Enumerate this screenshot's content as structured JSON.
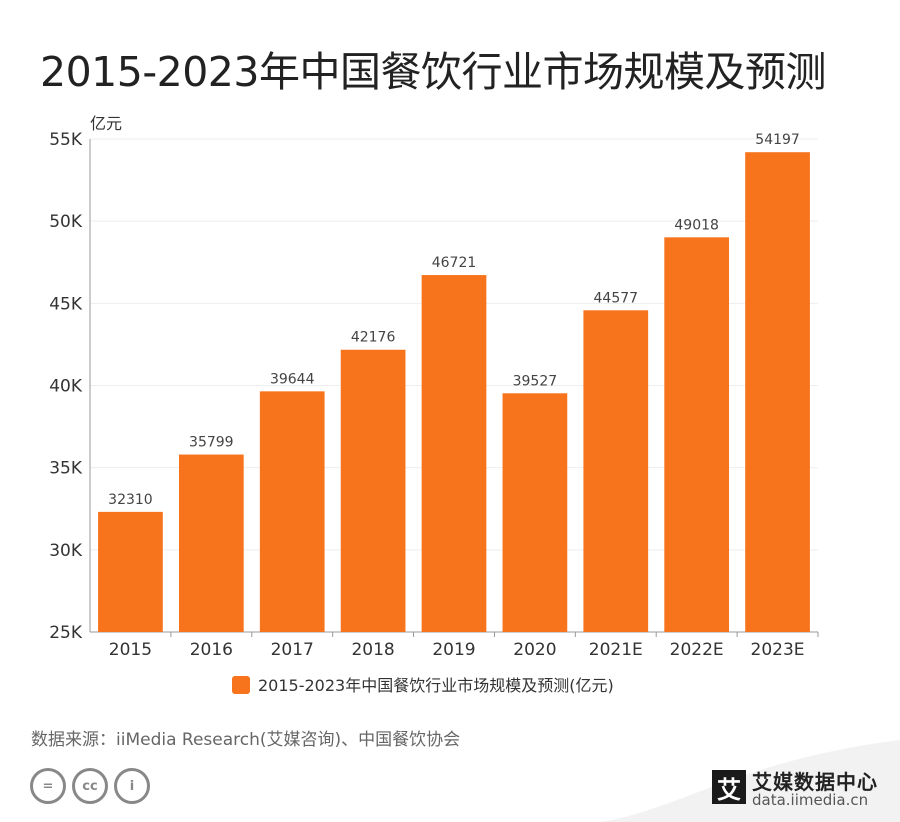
{
  "page": {
    "title": "2015-2023年中国餐饮行业市场规模及预测",
    "source": "数据来源：iiMedia Research(艾媒咨询)、中国餐饮协会",
    "brand": {
      "name": "艾媒数据中心",
      "url": "data.iimedia.cn",
      "logo_char": "艾"
    },
    "cc_icons": [
      "=",
      "cc",
      "i"
    ]
  },
  "chart_data": {
    "type": "bar",
    "title": "2015-2023年中国餐饮行业市场规模及预测",
    "ylabel": "亿元",
    "xlabel": "",
    "categories": [
      "2015",
      "2016",
      "2017",
      "2018",
      "2019",
      "2020",
      "2021E",
      "2022E",
      "2023E"
    ],
    "values": [
      32310,
      35799,
      39644,
      42176,
      46721,
      39527,
      44577,
      49018,
      54197
    ],
    "ylim": [
      25000,
      55000
    ],
    "yticks": [
      25000,
      30000,
      35000,
      40000,
      45000,
      50000,
      55000
    ],
    "ytick_labels": [
      "25K",
      "30K",
      "35K",
      "40K",
      "45K",
      "50K",
      "55K"
    ],
    "legend": {
      "label": "2015-2023年中国餐饮行业市场规模及预测(亿元)",
      "position": "bottom-center"
    },
    "grid": true,
    "colors": {
      "bar": "#f7731c",
      "grid": "#eeeeee",
      "axis": "#999999"
    }
  }
}
